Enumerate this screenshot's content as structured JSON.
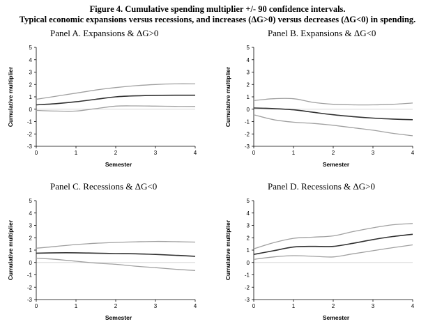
{
  "figure": {
    "title_line1": "Figure 4. Cumulative spending multiplier +/- 90 confidence intervals.",
    "title_line2": "Typical economic expansions versus recessions, and increases (ΔG>0) versus decreases (ΔG<0) in spending."
  },
  "chart_data": [
    {
      "type": "line",
      "title": "Panel A. Expansions & ΔG>0",
      "xlabel": "Semester",
      "ylabel": "Cumulative multiplier",
      "xlim": [
        0,
        4
      ],
      "ylim": [
        -3,
        5
      ],
      "xticks": [
        0,
        1,
        2,
        3,
        4
      ],
      "yticks": [
        -3,
        -2,
        -1,
        0,
        1,
        2,
        3,
        4,
        5
      ],
      "grid": false,
      "x": [
        0,
        0.5,
        1,
        1.5,
        2,
        2.5,
        3,
        3.5,
        4
      ],
      "series": [
        {
          "role": "upper",
          "color": "#a0a0a0",
          "values": [
            0.8,
            1.05,
            1.3,
            1.55,
            1.75,
            1.9,
            2.0,
            2.05,
            2.05
          ]
        },
        {
          "role": "estimate",
          "color": "#303030",
          "values": [
            0.35,
            0.45,
            0.6,
            0.8,
            1.0,
            1.08,
            1.12,
            1.13,
            1.13
          ]
        },
        {
          "role": "lower",
          "color": "#a0a0a0",
          "values": [
            -0.1,
            -0.15,
            -0.15,
            0.05,
            0.25,
            0.27,
            0.25,
            0.23,
            0.22
          ]
        }
      ]
    },
    {
      "type": "line",
      "title": "Panel B. Expansions & ΔG<0",
      "xlabel": "Semester",
      "ylabel": "Cumulative multiplier",
      "xlim": [
        0,
        4
      ],
      "ylim": [
        -3,
        5
      ],
      "xticks": [
        0,
        1,
        2,
        3,
        4
      ],
      "yticks": [
        -3,
        -2,
        -1,
        0,
        1,
        2,
        3,
        4,
        5
      ],
      "grid": false,
      "x": [
        0,
        0.5,
        1,
        1.5,
        2,
        2.5,
        3,
        3.5,
        4
      ],
      "series": [
        {
          "role": "upper",
          "color": "#a0a0a0",
          "values": [
            0.7,
            0.85,
            0.85,
            0.55,
            0.4,
            0.35,
            0.35,
            0.4,
            0.5
          ]
        },
        {
          "role": "estimate",
          "color": "#303030",
          "values": [
            0.1,
            0.05,
            -0.05,
            -0.25,
            -0.45,
            -0.6,
            -0.72,
            -0.8,
            -0.85
          ]
        },
        {
          "role": "lower",
          "color": "#a0a0a0",
          "values": [
            -0.45,
            -0.85,
            -1.05,
            -1.15,
            -1.3,
            -1.5,
            -1.7,
            -1.95,
            -2.15
          ]
        }
      ]
    },
    {
      "type": "line",
      "title": "Panel C. Recessions & ΔG<0",
      "xlabel": "Semester",
      "ylabel": "Cumulative multiplier",
      "xlim": [
        0,
        4
      ],
      "ylim": [
        -3,
        5
      ],
      "xticks": [
        0,
        1,
        2,
        3,
        4
      ],
      "yticks": [
        -3,
        -2,
        -1,
        0,
        1,
        2,
        3,
        4,
        5
      ],
      "grid": false,
      "x": [
        0,
        0.5,
        1,
        1.5,
        2,
        2.5,
        3,
        3.5,
        4
      ],
      "series": [
        {
          "role": "upper",
          "color": "#a0a0a0",
          "values": [
            1.15,
            1.3,
            1.45,
            1.55,
            1.62,
            1.67,
            1.7,
            1.68,
            1.65
          ]
        },
        {
          "role": "estimate",
          "color": "#303030",
          "values": [
            0.75,
            0.78,
            0.78,
            0.75,
            0.72,
            0.7,
            0.65,
            0.58,
            0.5
          ]
        },
        {
          "role": "lower",
          "color": "#a0a0a0",
          "values": [
            0.35,
            0.25,
            0.1,
            -0.05,
            -0.15,
            -0.3,
            -0.42,
            -0.55,
            -0.65
          ]
        }
      ]
    },
    {
      "type": "line",
      "title": "Panel D. Recessions & ΔG>0",
      "xlabel": "Semester",
      "ylabel": "Cumulative multiplier",
      "xlim": [
        0,
        4
      ],
      "ylim": [
        -3,
        5
      ],
      "xticks": [
        0,
        1,
        2,
        3,
        4
      ],
      "yticks": [
        -3,
        -2,
        -1,
        0,
        1,
        2,
        3,
        4,
        5
      ],
      "grid": false,
      "x": [
        0,
        0.5,
        1,
        1.5,
        2,
        2.5,
        3,
        3.5,
        4
      ],
      "series": [
        {
          "role": "upper",
          "color": "#a0a0a0",
          "values": [
            1.1,
            1.6,
            1.95,
            2.05,
            2.15,
            2.5,
            2.8,
            3.05,
            3.15
          ]
        },
        {
          "role": "estimate",
          "color": "#303030",
          "values": [
            0.65,
            0.95,
            1.25,
            1.3,
            1.3,
            1.55,
            1.85,
            2.1,
            2.28
          ]
        },
        {
          "role": "lower",
          "color": "#a0a0a0",
          "values": [
            0.25,
            0.45,
            0.55,
            0.5,
            0.45,
            0.7,
            0.95,
            1.2,
            1.42
          ]
        }
      ]
    }
  ]
}
